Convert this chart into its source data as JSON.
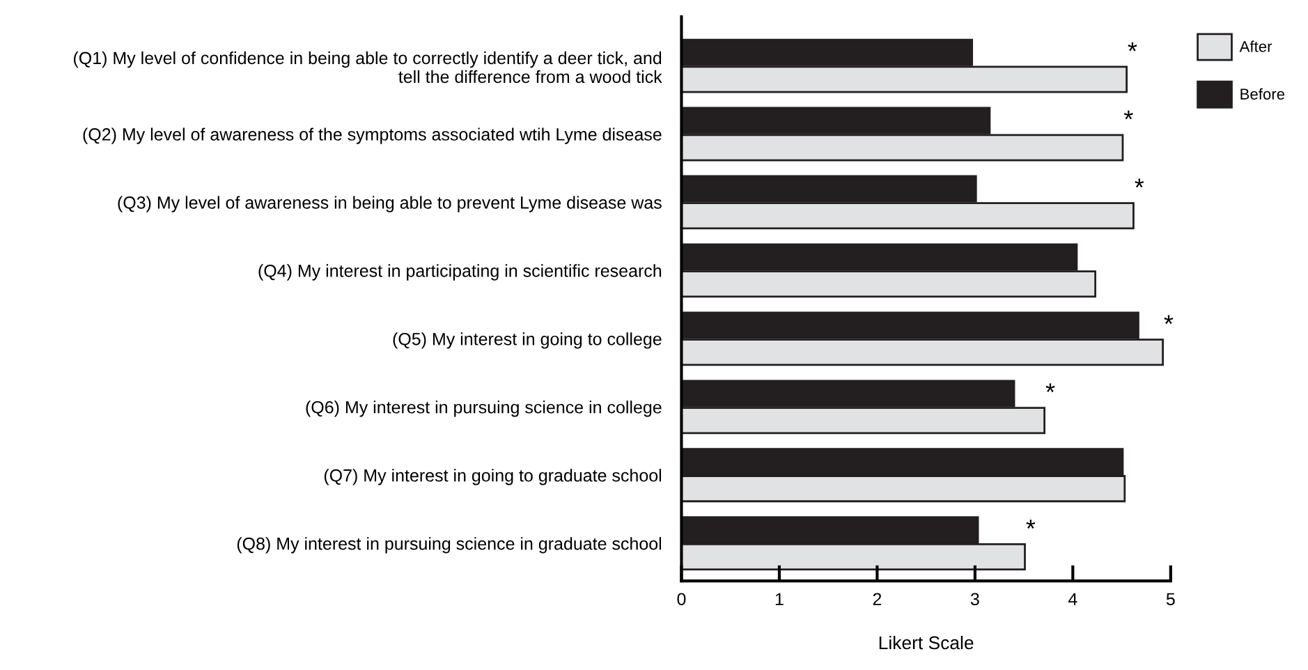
{
  "chart_data": {
    "type": "bar",
    "orientation": "horizontal",
    "xlabel": "Likert Scale",
    "categories": [
      "(Q1) My level of confidence in being able to correctly identify a deer tick, and\ntell the difference from a wood tick",
      "(Q2) My level of awareness of the symptoms associated wtih Lyme disease",
      "(Q3) My level of awareness in being able to prevent Lyme disease was",
      "(Q4) My interest in participating in scientific research",
      "(Q5) My interest in going to college",
      "(Q6) My interest in pursuing science in college",
      "(Q7) My interest in going to graduate school",
      "(Q8) My interest in pursuing science in graduate school"
    ],
    "series": [
      {
        "name": "After",
        "color": "#e1e2e4",
        "values": [
          4.55,
          4.51,
          4.62,
          4.23,
          4.92,
          3.71,
          4.53,
          3.51
        ]
      },
      {
        "name": "Before",
        "color": "#231f20",
        "values": [
          2.97,
          3.15,
          3.01,
          4.04,
          4.67,
          3.4,
          4.51,
          3.03
        ]
      }
    ],
    "xlim": [
      0,
      5
    ],
    "xticks": [
      0,
      1,
      2,
      3,
      4,
      5
    ],
    "grid": false,
    "legend": "top right",
    "annotations": [
      {
        "text": "*",
        "x": 4.55,
        "y": "(Q1) My level of confidence in being able to correctly identify a deer tick, and\ntell the difference from a wood tick"
      },
      {
        "text": "*",
        "x": 4.51,
        "y": "(Q2) My level of awareness of the symptoms associated wtih Lyme disease"
      },
      {
        "text": "*",
        "x": 4.62,
        "y": "(Q3) My level of awareness in being able to prevent Lyme disease was"
      },
      {
        "text": "*",
        "x": 4.92,
        "y": "(Q5) My interest in going to college"
      },
      {
        "text": "*",
        "x": 3.71,
        "y": "(Q6) My interest in pursuing science in college"
      },
      {
        "text": "*",
        "x": 3.51,
        "y": "(Q8) My interest in pursuing science in graduate school"
      }
    ]
  }
}
